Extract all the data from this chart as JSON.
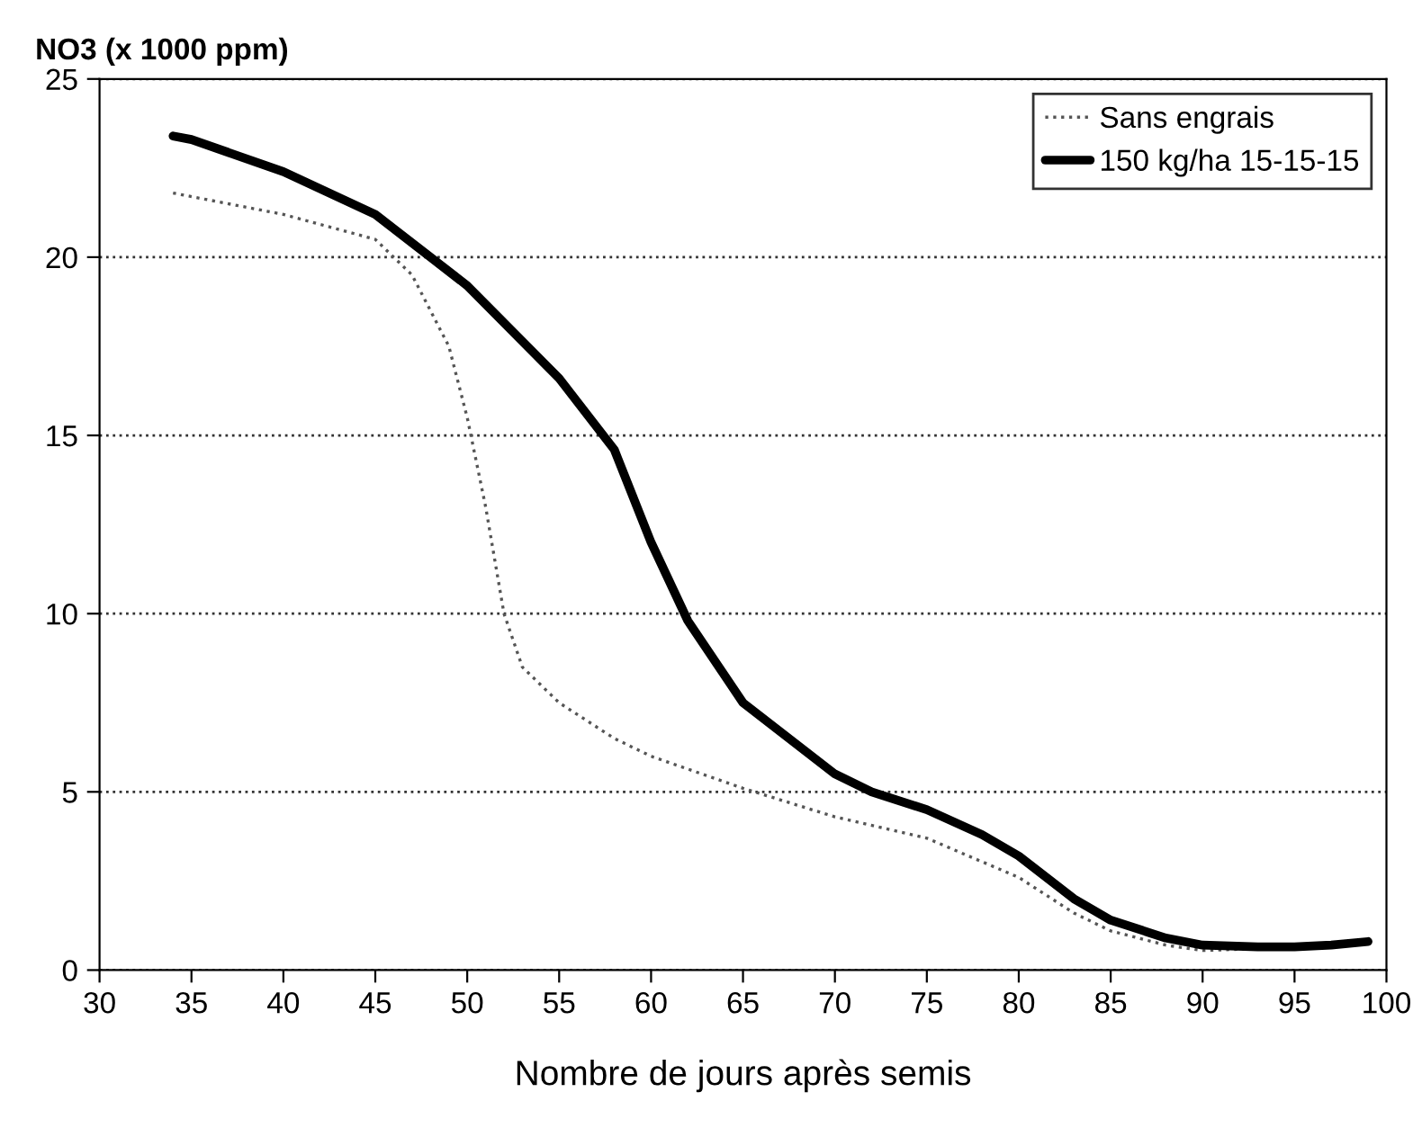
{
  "chart_data": {
    "type": "line",
    "ylabel": "NO3 (x 1000 ppm)",
    "xlabel": "Nombre de jours après semis",
    "xlim": [
      30,
      100
    ],
    "xticks": [
      30,
      35,
      40,
      45,
      50,
      55,
      60,
      65,
      70,
      75,
      80,
      85,
      90,
      95,
      100
    ],
    "ylim": [
      0,
      25
    ],
    "yticks": [
      0,
      5,
      10,
      15,
      20,
      25
    ],
    "grid": "y",
    "legend": "top right",
    "marker": "none",
    "series": [
      {
        "name": "Sans engrais",
        "color": "#555555",
        "line_style": "dotted",
        "x": [
          34,
          40,
          45,
          47,
          49,
          50,
          51,
          52,
          53,
          55,
          58,
          60,
          65,
          70,
          75,
          80,
          83,
          85,
          88,
          90,
          93,
          95
        ],
        "values": [
          21.8,
          21.2,
          20.5,
          19.5,
          17.5,
          15.5,
          13,
          10,
          8.5,
          7.5,
          6.5,
          6,
          5.1,
          4.3,
          3.7,
          2.6,
          1.6,
          1.1,
          0.7,
          0.55,
          0.6,
          0.7
        ]
      },
      {
        "name": "150 kg/ha 15-15-15",
        "color": "#000000",
        "line_style": "solid",
        "x": [
          34,
          35,
          40,
          45,
          48,
          50,
          55,
          58,
          60,
          62,
          65,
          70,
          72,
          75,
          78,
          80,
          83,
          85,
          88,
          90,
          93,
          95,
          97,
          99
        ],
        "values": [
          23.4,
          23.3,
          22.4,
          21.2,
          20,
          19.2,
          16.6,
          14.6,
          12,
          9.8,
          7.5,
          5.5,
          5,
          4.5,
          3.8,
          3.2,
          2,
          1.4,
          0.9,
          0.7,
          0.65,
          0.65,
          0.7,
          0.8
        ]
      }
    ]
  }
}
